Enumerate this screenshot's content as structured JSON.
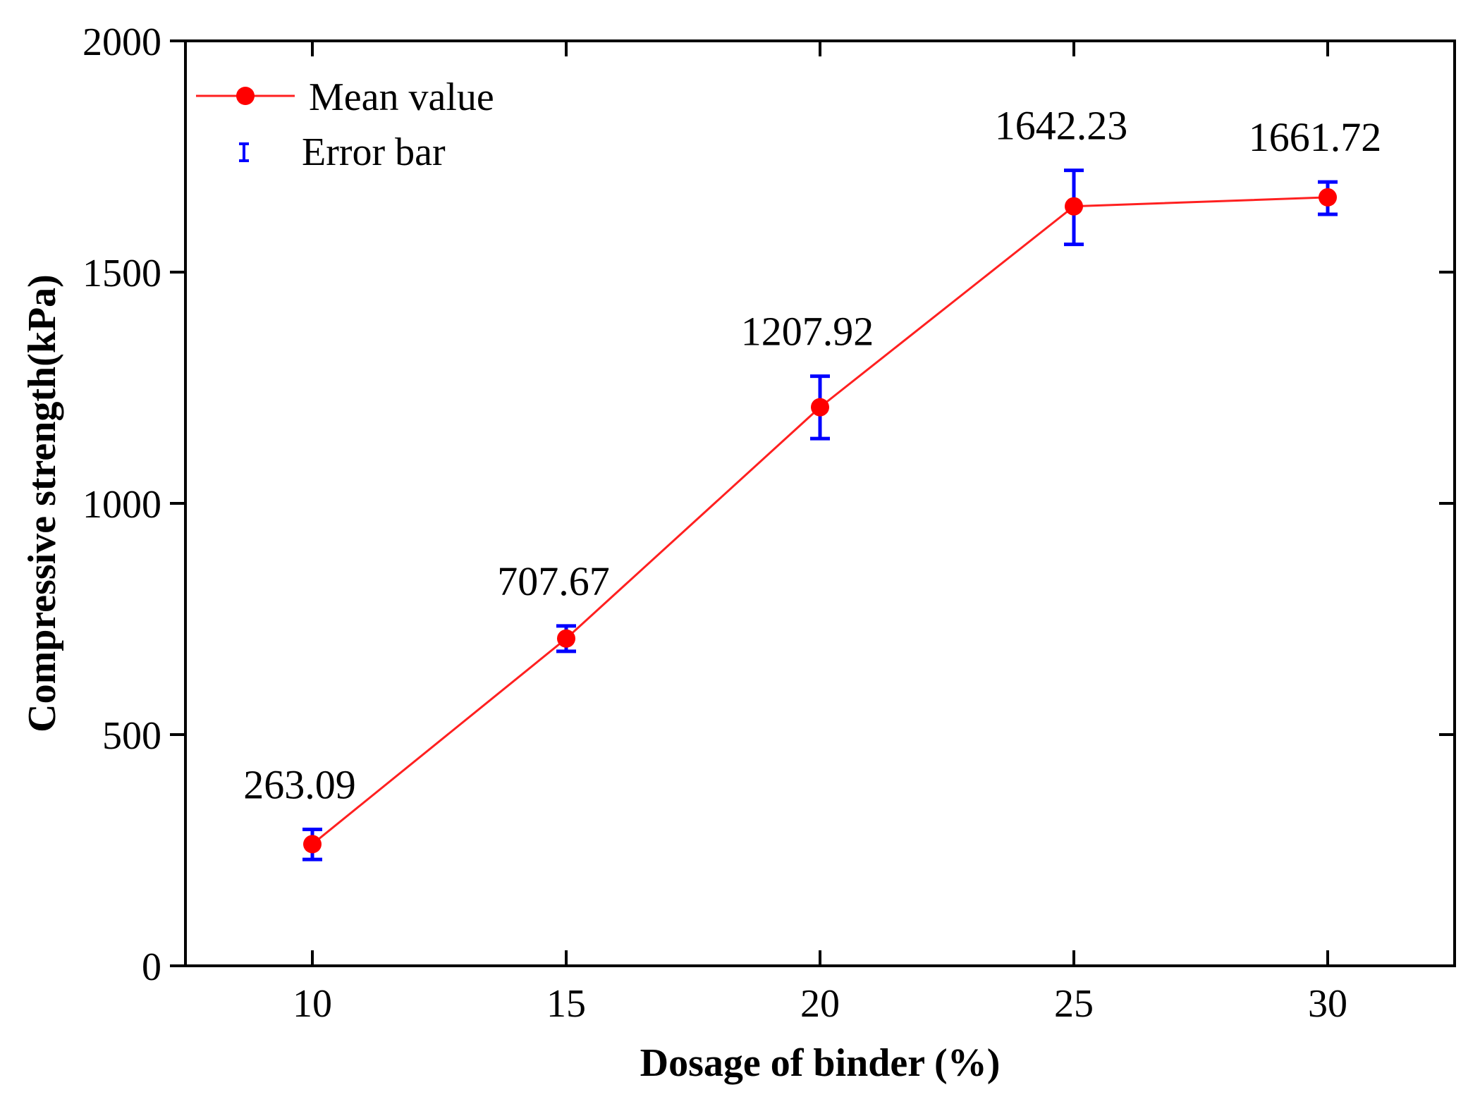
{
  "chart_data": {
    "type": "line",
    "title": "",
    "xlabel": "Dosage of binder (%)",
    "ylabel": "Compressive strength(kPa)",
    "xlim": [
      7.5,
      32.5
    ],
    "ylim": [
      0,
      2000
    ],
    "xticks": [
      10,
      15,
      20,
      25,
      30
    ],
    "yticks": [
      0,
      500,
      1000,
      1500,
      2000
    ],
    "xtick_labels": [
      "10",
      "15",
      "20",
      "25",
      "30"
    ],
    "ytick_labels": [
      "0",
      "500",
      "1000",
      "1500",
      "2000"
    ],
    "grid": false,
    "legend_position": "top-left",
    "series": [
      {
        "name": "Mean value",
        "color": "#ff2020",
        "marker_color": "#ff0000",
        "x": [
          10,
          15,
          20,
          25,
          30
        ],
        "values": [
          263.09,
          707.67,
          1207.92,
          1642.23,
          1661.72
        ],
        "value_labels": [
          "263.09",
          "707.67",
          "1207.92",
          "1642.23",
          "1661.72"
        ],
        "error_low": [
          230,
          680,
          1140,
          1560,
          1625
        ],
        "error_high": [
          295,
          735,
          1275,
          1720,
          1695
        ]
      }
    ],
    "legend": {
      "mean_label": "Mean value",
      "error_label": "Error bar",
      "error_color": "#0000ff"
    }
  }
}
